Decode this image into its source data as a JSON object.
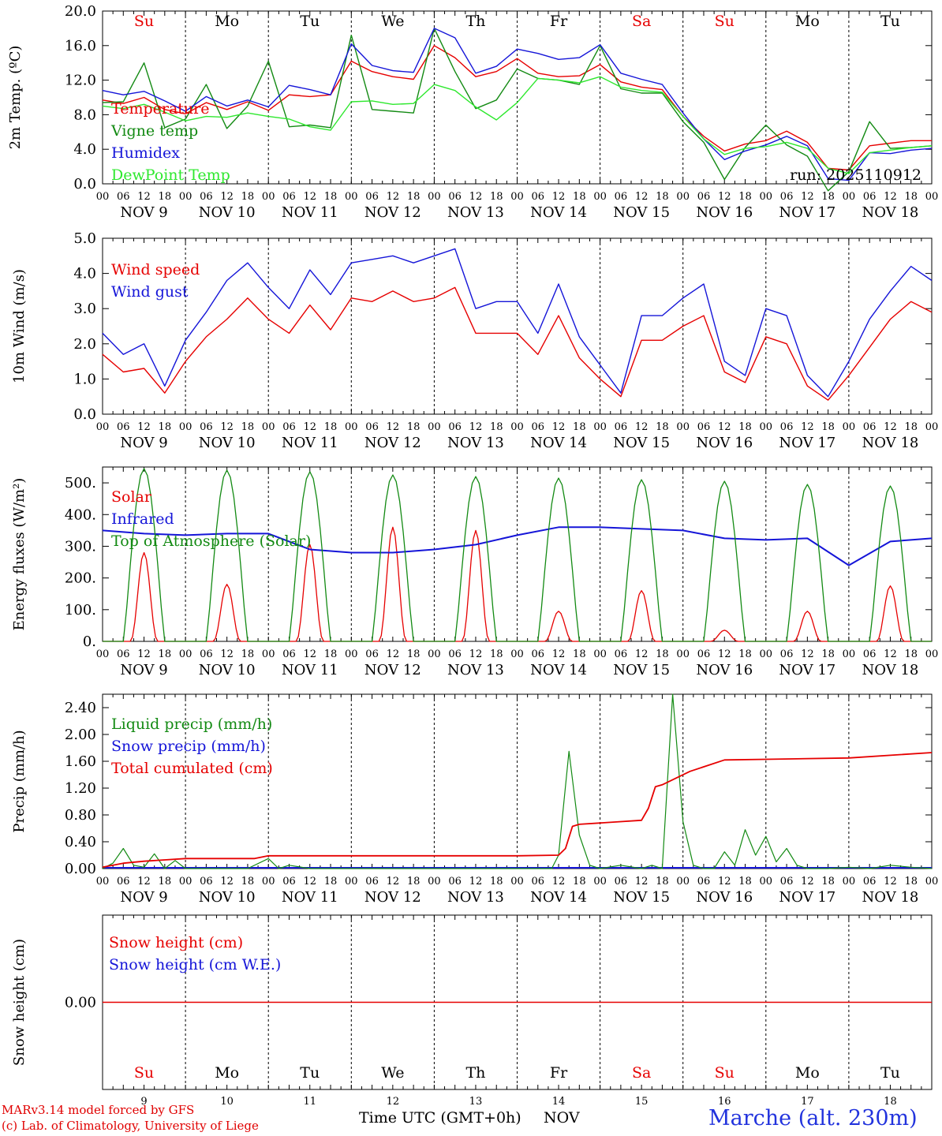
{
  "colors": {
    "red": "#e60000",
    "green": "#138a13",
    "blue": "#1515d8",
    "lightgreen": "#2ee82e",
    "grid": "#000000"
  },
  "days": {
    "weekday": [
      "Su",
      "Mo",
      "Tu",
      "We",
      "Th",
      "Fr",
      "Sa",
      "Su",
      "Mo",
      "Tu"
    ],
    "weekend": [
      true,
      false,
      false,
      false,
      false,
      false,
      true,
      true,
      false,
      false
    ],
    "date_labels": [
      "NOV  9",
      "NOV 10",
      "NOV 11",
      "NOV 12",
      "NOV 13",
      "NOV 14",
      "NOV 15",
      "NOV 16",
      "NOV 17",
      "NOV 18"
    ],
    "day_numbers": [
      "9",
      "10",
      "11",
      "12",
      "13",
      "14",
      "15",
      "16",
      "17",
      "18"
    ],
    "hour_ticks": [
      "00",
      "06",
      "12",
      "18"
    ],
    "last_tick": "00"
  },
  "footer": {
    "credit_line1": "MARv3.14 model forced by GFS",
    "credit_line2": "(c) Lab. of Climatology, University of Liege",
    "xaxis_title": "Time UTC (GMT+0h)",
    "xaxis_unit": "NOV",
    "station": "Marche (alt. 230m)"
  },
  "chart_data": [
    {
      "type": "line",
      "id": "temp",
      "title": "",
      "xlabel": "",
      "ylabel": "2m Temp. (ºC)",
      "ylim": [
        0,
        20
      ],
      "yticks": [
        "0.0",
        "4.0",
        "8.0",
        "12.0",
        "16.0",
        "20.0"
      ],
      "annotation": "run: 2025110912",
      "hline_dashed": 0,
      "x_hours": [
        0,
        6,
        12,
        18,
        24,
        30,
        36,
        42,
        48,
        54,
        60,
        66,
        72,
        78,
        84,
        90,
        96,
        102,
        108,
        114,
        120,
        126,
        132,
        138,
        144,
        150,
        156,
        162,
        168,
        174,
        180,
        186,
        192,
        198,
        204,
        210,
        216,
        222,
        228,
        234,
        240
      ],
      "series": [
        {
          "name": "Temperature",
          "color": "red",
          "values": [
            9.7,
            9.3,
            10,
            8.6,
            8.1,
            9.4,
            8.6,
            9.5,
            8.5,
            10.3,
            10.1,
            10.3,
            14.2,
            13,
            12.4,
            12.1,
            16,
            14.6,
            12.4,
            13,
            14.5,
            12.8,
            12.4,
            12.5,
            13.8,
            11.8,
            11.2,
            10.9,
            7.8,
            5.5,
            3.8,
            4.6,
            5,
            6.1,
            4.8,
            1.8,
            1.6,
            4.4,
            4.7,
            5.0,
            5.0
          ]
        },
        {
          "name": "Vigne temp",
          "color": "green",
          "values": [
            9.4,
            9.5,
            14,
            6.5,
            7.5,
            11.5,
            6.4,
            9,
            14.2,
            6.6,
            6.8,
            6.5,
            17.2,
            8.6,
            8.4,
            8.2,
            18,
            13,
            8.7,
            9.7,
            13.3,
            12.2,
            12,
            11.5,
            16,
            11,
            10.5,
            10.5,
            7.2,
            4.8,
            0.5,
            4.2,
            6.8,
            4.5,
            3.2,
            -0.8,
            1.4,
            7.2,
            4.1,
            4.2,
            4.4
          ]
        },
        {
          "name": "Humidex",
          "color": "blue",
          "values": [
            10.8,
            10.3,
            10.7,
            9.6,
            8.4,
            10.1,
            9,
            9.7,
            8.9,
            11.4,
            10.9,
            10.3,
            16.2,
            13.7,
            13.1,
            12.9,
            18,
            16.9,
            12.8,
            13.6,
            15.6,
            15.1,
            14.4,
            14.6,
            16.1,
            12.8,
            12.1,
            11.5,
            8.2,
            5.2,
            2.8,
            3.8,
            4.5,
            5.5,
            4.4,
            0.6,
            0.4,
            3.6,
            3.5,
            3.9,
            4.1
          ]
        },
        {
          "name": "DewPoint Temp",
          "color": "lightgreen",
          "values": [
            9,
            8.7,
            9.2,
            8.3,
            7.3,
            7.8,
            7.7,
            8.2,
            7.8,
            7.5,
            6.6,
            6.2,
            9.5,
            9.6,
            9.2,
            9.3,
            11.5,
            10.8,
            8.9,
            7.4,
            9.4,
            12.2,
            12,
            11.7,
            12.4,
            11.2,
            10.8,
            10.6,
            7.8,
            5.2,
            3.4,
            4.1,
            4.3,
            4.8,
            4.1,
            1.8,
            1.2,
            3.6,
            3.9,
            4.2,
            4.4
          ]
        }
      ]
    },
    {
      "type": "line",
      "id": "wind",
      "title": "",
      "xlabel": "",
      "ylabel": "10m Wind (m/s)",
      "ylim": [
        0,
        5
      ],
      "yticks": [
        "0.0",
        "1.0",
        "2.0",
        "3.0",
        "4.0",
        "5.0"
      ],
      "x_hours": [
        0,
        6,
        12,
        18,
        24,
        30,
        36,
        42,
        48,
        54,
        60,
        66,
        72,
        78,
        84,
        90,
        96,
        102,
        108,
        114,
        120,
        126,
        132,
        138,
        144,
        150,
        156,
        162,
        168,
        174,
        180,
        186,
        192,
        198,
        204,
        210,
        216,
        222,
        228,
        234,
        240
      ],
      "series": [
        {
          "name": "Wind speed",
          "color": "red",
          "values": [
            1.7,
            1.2,
            1.3,
            0.6,
            1.5,
            2.2,
            2.7,
            3.3,
            2.7,
            2.3,
            3.1,
            2.4,
            3.3,
            3.2,
            3.5,
            3.2,
            3.3,
            3.6,
            2.3,
            2.3,
            2.3,
            1.7,
            2.8,
            1.6,
            1,
            0.5,
            2.1,
            2.1,
            2.5,
            2.8,
            1.2,
            0.9,
            2.2,
            2,
            0.8,
            0.4,
            1.1,
            1.9,
            2.7,
            3.2,
            2.9
          ]
        },
        {
          "name": "Wind gust",
          "color": "blue",
          "values": [
            2.3,
            1.7,
            2,
            0.8,
            2.1,
            2.9,
            3.8,
            4.3,
            3.6,
            3,
            4.1,
            3.4,
            4.3,
            4.4,
            4.5,
            4.3,
            4.5,
            4.7,
            3,
            3.2,
            3.2,
            2.3,
            3.7,
            2.2,
            1.4,
            0.6,
            2.8,
            2.8,
            3.3,
            3.7,
            1.5,
            1.1,
            3,
            2.8,
            1.1,
            0.5,
            1.5,
            2.7,
            3.5,
            4.2,
            3.8
          ]
        }
      ]
    },
    {
      "type": "line",
      "id": "energy",
      "title": "",
      "xlabel": "",
      "ylabel": "Energy fluxes (W/m²)",
      "ylim": [
        0,
        550
      ],
      "yticks": [
        "0.",
        "100.",
        "200.",
        "300.",
        "400.",
        "500."
      ],
      "series": [
        {
          "name": "Solar",
          "color": "red",
          "peaks": [
            280,
            180,
            305,
            360,
            350,
            95,
            160,
            35,
            95,
            175
          ]
        },
        {
          "name": "Infrared",
          "color": "blue",
          "x_hours": [
            0,
            12,
            24,
            36,
            48,
            60,
            72,
            84,
            96,
            108,
            120,
            132,
            144,
            156,
            168,
            180,
            192,
            204,
            216,
            228,
            240
          ],
          "values": [
            350,
            340,
            335,
            340,
            340,
            290,
            280,
            280,
            290,
            305,
            335,
            360,
            360,
            355,
            350,
            325,
            320,
            325,
            240,
            315,
            325
          ]
        },
        {
          "name": "Top of Atmosphere (Solar)",
          "color": "green",
          "peaks": [
            545,
            540,
            535,
            525,
            520,
            515,
            510,
            505,
            495,
            490
          ]
        }
      ]
    },
    {
      "type": "line",
      "id": "precip",
      "title": "",
      "xlabel": "",
      "ylabel": "Precip (mm/h)",
      "ylim": [
        0,
        2.6
      ],
      "yticks": [
        "0.00",
        "0.40",
        "0.80",
        "1.20",
        "1.60",
        "2.00",
        "2.40"
      ],
      "series": [
        {
          "name": "Liquid precip (mm/h)",
          "color": "green",
          "x_hours": [
            0,
            3,
            6,
            9,
            12,
            15,
            18,
            21,
            24,
            30,
            36,
            42,
            48,
            51,
            54,
            60,
            72,
            96,
            120,
            130,
            132,
            135,
            138,
            141,
            144,
            150,
            156,
            159,
            162,
            165,
            168,
            171,
            174,
            177,
            180,
            183,
            186,
            189,
            192,
            195,
            198,
            201,
            204,
            210,
            216,
            222,
            228,
            234,
            240
          ],
          "values": [
            0,
            0.08,
            0.3,
            0.05,
            0.02,
            0.22,
            0,
            0.12,
            0,
            0,
            0,
            0,
            0.15,
            0,
            0.05,
            0,
            0,
            0,
            0,
            0,
            0.2,
            1.75,
            0.5,
            0.05,
            0,
            0.05,
            0,
            0.05,
            0,
            2.6,
            0.7,
            0.05,
            0,
            0,
            0.25,
            0.05,
            0.58,
            0.2,
            0.48,
            0.1,
            0.3,
            0.05,
            0,
            0,
            0.02,
            0,
            0.05,
            0.02,
            0
          ]
        },
        {
          "name": "Snow precip (mm/h)",
          "color": "blue",
          "values": [
            0,
            0
          ]
        },
        {
          "name": "Total cumulated (cm)",
          "color": "red",
          "x_hours": [
            0,
            6,
            12,
            18,
            24,
            36,
            44,
            48,
            60,
            96,
            120,
            132,
            134,
            136,
            138,
            150,
            156,
            158,
            160,
            162,
            170,
            180,
            192,
            216,
            240
          ],
          "values": [
            0.02,
            0.08,
            0.11,
            0.13,
            0.15,
            0.15,
            0.15,
            0.19,
            0.19,
            0.19,
            0.19,
            0.2,
            0.3,
            0.63,
            0.66,
            0.7,
            0.72,
            0.9,
            1.22,
            1.25,
            1.45,
            1.62,
            1.63,
            1.65,
            1.73
          ]
        }
      ]
    },
    {
      "type": "line",
      "id": "snow",
      "title": "",
      "xlabel": "",
      "ylabel": "Snow height (cm)",
      "ylim": [
        -1,
        1
      ],
      "yticks": [
        "0.00"
      ],
      "series": [
        {
          "name": "Snow height (cm)",
          "color": "red",
          "values": [
            0,
            0
          ]
        },
        {
          "name": "Snow height (cm W.E.)",
          "color": "blue",
          "values": [
            0,
            0
          ]
        }
      ]
    }
  ]
}
